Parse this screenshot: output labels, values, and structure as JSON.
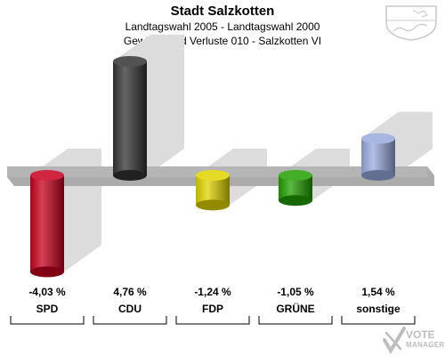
{
  "header": {
    "title": "Stadt Salzkotten",
    "subtitle1": "Landtagswahl 2005 - Landtagswahl 2000",
    "subtitle2": "Gewinne und Verluste 010 - Salzkotten VI"
  },
  "chart_data": {
    "type": "bar",
    "categories": [
      "SPD",
      "CDU",
      "FDP",
      "GRÜNE",
      "sonstige"
    ],
    "values": [
      -4.03,
      4.76,
      -1.24,
      -1.05,
      1.54
    ],
    "value_labels": [
      "-4,03 %",
      "4,76 %",
      "-1,24 %",
      "-1,05 %",
      "1,54 %"
    ],
    "colors": [
      "#c8001e",
      "#333333",
      "#e0d400",
      "#22a000",
      "#99aadd"
    ],
    "ylim": [
      -4.03,
      4.76
    ],
    "grid": false,
    "legend": "none"
  },
  "logo": {
    "line1": "VOTE",
    "line2": "MANAGER"
  },
  "icons": {
    "coat": "coat-of-arms-icon",
    "logo": "vote-manager-check-icon"
  }
}
